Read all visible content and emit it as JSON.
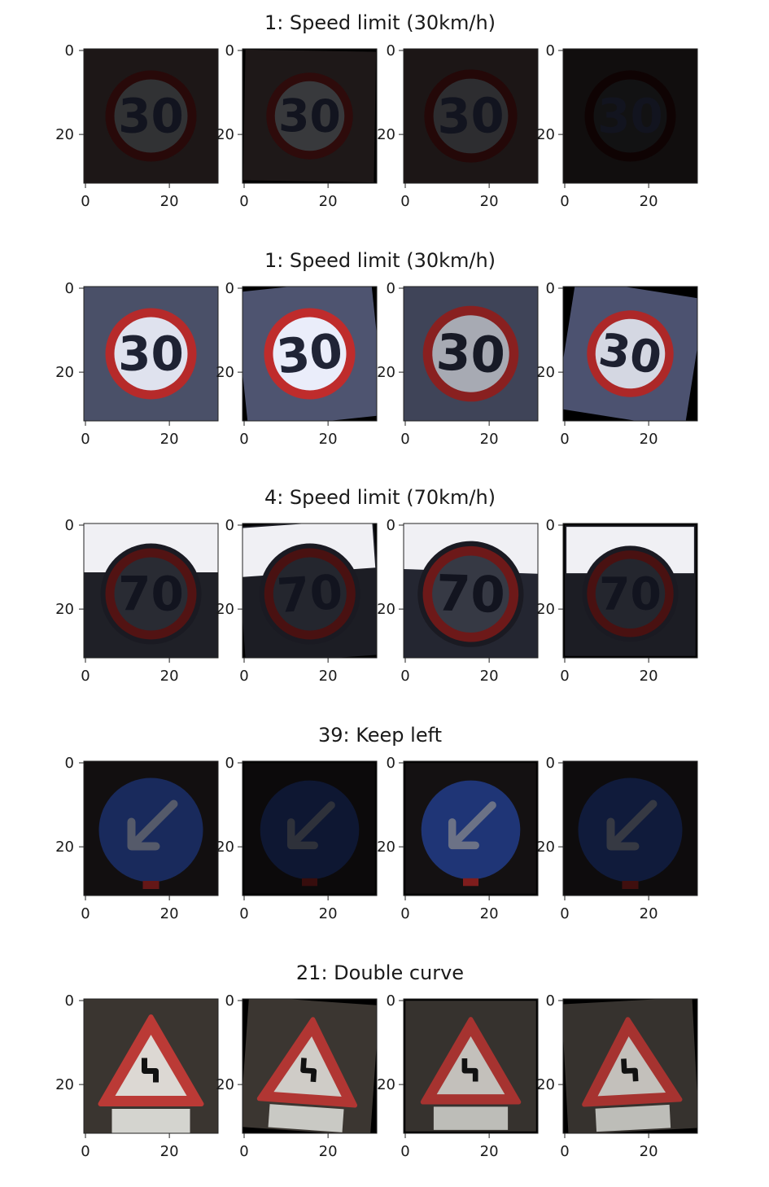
{
  "figure": {
    "rows": [
      {
        "title": "1: Speed limit (30km/h)",
        "sign": "round-red-30",
        "variants": [
          {
            "brightness": 0.22,
            "rot": 0,
            "scale": 1.0,
            "bgColor": "#1d1717"
          },
          {
            "brightness": 0.25,
            "rot": 1,
            "scale": 0.95,
            "bgColor": "#1e1818"
          },
          {
            "brightness": 0.2,
            "rot": -1,
            "scale": 1.02,
            "bgColor": "#1c1616"
          },
          {
            "brightness": 0.08,
            "rot": 0,
            "scale": 1.0,
            "bgColor": "#110e0e"
          }
        ],
        "signText": "30"
      },
      {
        "title": "1: Speed limit (30km/h)",
        "sign": "round-red-30",
        "variants": [
          {
            "brightness": 1.0,
            "rot": 0,
            "scale": 1.0,
            "bgColor": "#4a5068"
          },
          {
            "brightness": 1.05,
            "rot": -6,
            "scale": 1.0,
            "bgColor": "#4e5470"
          },
          {
            "brightness": 0.75,
            "rot": 3,
            "scale": 1.05,
            "bgColor": "#3f4458"
          },
          {
            "brightness": 0.95,
            "rot": 9,
            "scale": 0.95,
            "bgColor": "#4c5270"
          }
        ],
        "signText": "30"
      },
      {
        "title": "4: Speed limit (70km/h)",
        "sign": "round-red-70",
        "variants": [
          {
            "brightness": 0.45,
            "rot": 0,
            "scale": 1.0,
            "bgColor": "#1f2027"
          },
          {
            "brightness": 0.4,
            "rot": -4,
            "scale": 1.0,
            "bgColor": "#1c1d24"
          },
          {
            "brightness": 0.6,
            "rot": 2,
            "scale": 1.05,
            "bgColor": "#242631"
          },
          {
            "brightness": 0.4,
            "rot": 0,
            "scale": 0.95,
            "bgColor": "#1c1d24"
          }
        ],
        "signText": "70"
      },
      {
        "title": "39: Keep left",
        "sign": "blue-keep-left",
        "variants": [
          {
            "brightness": 0.55,
            "rot": 0,
            "scale": 1.0,
            "bgColor": "#120f10"
          },
          {
            "brightness": 0.3,
            "rot": 0,
            "scale": 0.95,
            "bgColor": "#0c0a0b"
          },
          {
            "brightness": 0.7,
            "rot": 0,
            "scale": 0.95,
            "bgColor": "#141112"
          },
          {
            "brightness": 0.35,
            "rot": 0,
            "scale": 1.0,
            "bgColor": "#0e0c0d"
          }
        ],
        "signText": ""
      },
      {
        "title": "21: Double curve",
        "sign": "triangle-double-curve",
        "variants": [
          {
            "brightness": 0.9,
            "rot": 0,
            "scale": 1.0,
            "bgColor": "#3a3530"
          },
          {
            "brightness": 0.85,
            "rot": 4,
            "scale": 0.95,
            "bgColor": "#3b3631"
          },
          {
            "brightness": 0.8,
            "rot": 0,
            "scale": 0.95,
            "bgColor": "#36322e"
          },
          {
            "brightness": 0.8,
            "rot": -3,
            "scale": 0.95,
            "bgColor": "#36322e"
          }
        ],
        "signText": ""
      }
    ],
    "axis": {
      "xTicks": [
        "0",
        "20"
      ],
      "yTicks": [
        "0",
        "20"
      ],
      "yTickLabelsInner": [
        "0",
        "20"
      ]
    },
    "colors": {
      "red": "#b62a2a",
      "blue": "#233c8c",
      "white": "#e8e8f0"
    }
  }
}
